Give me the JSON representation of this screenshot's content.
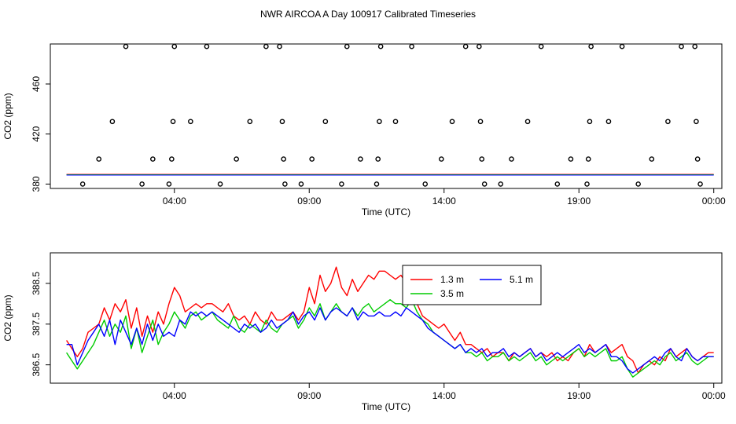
{
  "title": "NWR AIRCOA A  Day 100917  Calibrated Timeseries",
  "chart_data": [
    {
      "type": "scatter",
      "title": "NWR AIRCOA A  Day 100917  Calibrated Timeseries",
      "xlabel": "Time (UTC)",
      "ylabel": "CO2 (ppm)",
      "xlim": [
        -0.6,
        24.3
      ],
      "ylim": [
        376.5,
        492
      ],
      "xticks": [
        4,
        9,
        14,
        19,
        24
      ],
      "xtick_labels": [
        "04:00",
        "09:00",
        "14:00",
        "19:00",
        "00:00"
      ],
      "yticks": [
        380,
        420,
        460
      ],
      "ytick_labels": [
        "380",
        "420",
        "460"
      ],
      "flat_lines": [
        {
          "name": "1.3 m",
          "color": "#ff0000",
          "value": 387.8
        },
        {
          "name": "3.5 m",
          "color": "#00cc00",
          "value": 387.5
        },
        {
          "name": "5.1 m",
          "color": "#0000ff",
          "value": 387.2
        }
      ],
      "points": [
        [
          0.6,
          380
        ],
        [
          1.2,
          400
        ],
        [
          1.7,
          430
        ],
        [
          2.2,
          490
        ],
        [
          2.8,
          380
        ],
        [
          3.2,
          400
        ],
        [
          3.8,
          380
        ],
        [
          3.9,
          400
        ],
        [
          3.95,
          430
        ],
        [
          4.0,
          490
        ],
        [
          4.6,
          430
        ],
        [
          5.2,
          490
        ],
        [
          5.7,
          380
        ],
        [
          6.3,
          400
        ],
        [
          6.8,
          430
        ],
        [
          7.4,
          490
        ],
        [
          7.9,
          490
        ],
        [
          8.0,
          430
        ],
        [
          8.05,
          400
        ],
        [
          8.1,
          380
        ],
        [
          8.7,
          380
        ],
        [
          9.1,
          400
        ],
        [
          9.6,
          430
        ],
        [
          10.2,
          380
        ],
        [
          10.4,
          490
        ],
        [
          10.9,
          400
        ],
        [
          11.5,
          380
        ],
        [
          11.55,
          400
        ],
        [
          11.6,
          430
        ],
        [
          11.65,
          490
        ],
        [
          12.2,
          430
        ],
        [
          12.8,
          490
        ],
        [
          13.3,
          380
        ],
        [
          13.9,
          400
        ],
        [
          14.3,
          430
        ],
        [
          14.8,
          490
        ],
        [
          15.3,
          490
        ],
        [
          15.35,
          430
        ],
        [
          15.4,
          400
        ],
        [
          15.5,
          380
        ],
        [
          16.1,
          380
        ],
        [
          16.5,
          400
        ],
        [
          17.1,
          430
        ],
        [
          17.6,
          490
        ],
        [
          18.2,
          380
        ],
        [
          18.7,
          400
        ],
        [
          19.3,
          380
        ],
        [
          19.35,
          400
        ],
        [
          19.4,
          430
        ],
        [
          19.45,
          490
        ],
        [
          20.1,
          430
        ],
        [
          20.6,
          490
        ],
        [
          21.2,
          380
        ],
        [
          21.7,
          400
        ],
        [
          22.3,
          430
        ],
        [
          22.8,
          490
        ],
        [
          23.3,
          490
        ],
        [
          23.35,
          430
        ],
        [
          23.4,
          400
        ],
        [
          23.5,
          380
        ]
      ]
    },
    {
      "type": "line",
      "xlabel": "Time (UTC)",
      "ylabel": "CO2 (ppm)",
      "xlim": [
        -0.6,
        24.3
      ],
      "ylim": [
        386.05,
        389.25
      ],
      "xticks": [
        4,
        9,
        14,
        19,
        24
      ],
      "xtick_labels": [
        "04:00",
        "09:00",
        "14:00",
        "19:00",
        "00:00"
      ],
      "yticks": [
        386.5,
        387.5,
        388.5
      ],
      "ytick_labels": [
        "386.5",
        "387.5",
        "388.5"
      ],
      "legend_position": "top-right",
      "series": [
        {
          "name": "1.3 m",
          "color": "#ff0000",
          "x": [
            0,
            0.2,
            0.4,
            0.6,
            0.8,
            1.0,
            1.2,
            1.4,
            1.6,
            1.8,
            2.0,
            2.2,
            2.4,
            2.6,
            2.8,
            3.0,
            3.2,
            3.4,
            3.6,
            3.8,
            4.0,
            4.2,
            4.4,
            4.6,
            4.8,
            5.0,
            5.2,
            5.4,
            5.6,
            5.8,
            6.0,
            6.2,
            6.4,
            6.6,
            6.8,
            7.0,
            7.2,
            7.4,
            7.6,
            7.8,
            8.0,
            8.2,
            8.4,
            8.6,
            8.8,
            9.0,
            9.2,
            9.4,
            9.6,
            9.8,
            10.0,
            10.2,
            10.4,
            10.6,
            10.8,
            11.0,
            11.2,
            11.4,
            11.6,
            11.8,
            12.0,
            12.2,
            12.4,
            12.6,
            12.8,
            13.0,
            13.2,
            13.4,
            13.6,
            13.8,
            14.0,
            14.2,
            14.4,
            14.6,
            14.8,
            15.0,
            15.2,
            15.4,
            15.6,
            15.8,
            16.0,
            16.2,
            16.4,
            16.6,
            16.8,
            17.0,
            17.2,
            17.4,
            17.6,
            17.8,
            18.0,
            18.2,
            18.4,
            18.6,
            18.8,
            19.0,
            19.2,
            19.4,
            19.6,
            19.8,
            20.0,
            20.2,
            20.4,
            20.6,
            20.8,
            21.0,
            21.2,
            21.4,
            21.6,
            21.8,
            22.0,
            22.2,
            22.4,
            22.6,
            22.8,
            23.0,
            23.2,
            23.4,
            23.6,
            23.8,
            24.0
          ],
          "values": [
            387.1,
            386.9,
            386.7,
            386.9,
            387.3,
            387.4,
            387.5,
            387.9,
            387.6,
            388.0,
            387.8,
            388.1,
            387.4,
            387.9,
            387.2,
            387.7,
            387.3,
            387.8,
            387.5,
            388.0,
            388.4,
            388.2,
            387.8,
            387.9,
            388.0,
            387.9,
            388.0,
            388.0,
            387.9,
            387.8,
            388.0,
            387.7,
            387.6,
            387.7,
            387.5,
            387.8,
            387.6,
            387.5,
            387.8,
            387.6,
            387.6,
            387.7,
            387.8,
            387.6,
            387.8,
            388.4,
            388.0,
            388.7,
            388.3,
            388.5,
            388.9,
            388.4,
            388.2,
            388.6,
            388.3,
            388.5,
            388.7,
            388.6,
            388.8,
            388.8,
            388.7,
            388.6,
            388.7,
            388.5,
            388.2,
            388.0,
            387.7,
            387.6,
            387.5,
            387.4,
            387.5,
            387.3,
            387.1,
            387.3,
            387.0,
            387.0,
            386.9,
            386.8,
            386.9,
            386.7,
            386.8,
            386.8,
            386.6,
            386.8,
            386.7,
            386.8,
            386.9,
            386.7,
            386.8,
            386.7,
            386.8,
            386.6,
            386.7,
            386.6,
            386.8,
            386.9,
            386.7,
            387.0,
            386.8,
            386.9,
            387.0,
            386.8,
            386.9,
            387.0,
            386.7,
            386.6,
            386.3,
            386.5,
            386.6,
            386.5,
            386.7,
            386.6,
            386.9,
            386.7,
            386.8,
            386.9,
            386.7,
            386.6,
            386.7,
            386.8,
            386.8
          ]
        },
        {
          "name": "3.5 m",
          "color": "#00cc00",
          "x": [
            0,
            0.2,
            0.4,
            0.6,
            0.8,
            1.0,
            1.2,
            1.4,
            1.6,
            1.8,
            2.0,
            2.2,
            2.4,
            2.6,
            2.8,
            3.0,
            3.2,
            3.4,
            3.6,
            3.8,
            4.0,
            4.2,
            4.4,
            4.6,
            4.8,
            5.0,
            5.2,
            5.4,
            5.6,
            5.8,
            6.0,
            6.2,
            6.4,
            6.6,
            6.8,
            7.0,
            7.2,
            7.4,
            7.6,
            7.8,
            8.0,
            8.2,
            8.4,
            8.6,
            8.8,
            9.0,
            9.2,
            9.4,
            9.6,
            9.8,
            10.0,
            10.2,
            10.4,
            10.6,
            10.8,
            11.0,
            11.2,
            11.4,
            11.6,
            11.8,
            12.0,
            12.2,
            12.4,
            12.6,
            12.8,
            13.0,
            13.2,
            13.4,
            13.6,
            13.8,
            14.0,
            14.2,
            14.4,
            14.6,
            14.8,
            15.0,
            15.2,
            15.4,
            15.6,
            15.8,
            16.0,
            16.2,
            16.4,
            16.6,
            16.8,
            17.0,
            17.2,
            17.4,
            17.6,
            17.8,
            18.0,
            18.2,
            18.4,
            18.6,
            18.8,
            19.0,
            19.2,
            19.4,
            19.6,
            19.8,
            20.0,
            20.2,
            20.4,
            20.6,
            20.8,
            21.0,
            21.2,
            21.4,
            21.6,
            21.8,
            22.0,
            22.2,
            22.4,
            22.6,
            22.8,
            23.0,
            23.2,
            23.4,
            23.6,
            23.8,
            24.0
          ],
          "values": [
            386.8,
            386.6,
            386.4,
            386.6,
            386.8,
            387.0,
            387.3,
            387.6,
            387.2,
            387.5,
            387.3,
            387.7,
            386.9,
            387.4,
            386.8,
            387.2,
            387.6,
            387.0,
            387.3,
            387.5,
            387.8,
            387.6,
            387.4,
            387.7,
            387.8,
            387.6,
            387.7,
            387.8,
            387.6,
            387.5,
            387.4,
            387.7,
            387.4,
            387.3,
            387.5,
            387.4,
            387.3,
            387.6,
            387.4,
            387.3,
            387.5,
            387.6,
            387.7,
            387.4,
            387.6,
            387.9,
            387.7,
            388.0,
            387.6,
            387.8,
            388.0,
            387.8,
            387.7,
            387.9,
            387.7,
            387.9,
            388.0,
            387.8,
            387.9,
            388.0,
            388.1,
            388.0,
            388.0,
            387.9,
            388.1,
            387.8,
            387.6,
            387.5,
            387.3,
            387.2,
            387.1,
            387.0,
            386.9,
            387.0,
            386.8,
            386.8,
            386.7,
            386.8,
            386.6,
            386.7,
            386.7,
            386.8,
            386.6,
            386.7,
            386.6,
            386.7,
            386.8,
            386.6,
            386.7,
            386.5,
            386.6,
            386.7,
            386.6,
            386.7,
            386.8,
            386.9,
            386.7,
            386.8,
            386.7,
            386.8,
            386.9,
            386.6,
            386.6,
            386.7,
            386.4,
            386.2,
            386.3,
            386.4,
            386.5,
            386.6,
            386.5,
            386.7,
            386.8,
            386.6,
            386.7,
            386.8,
            386.6,
            386.5,
            386.6,
            386.7,
            386.7
          ]
        },
        {
          "name": "5.1 m",
          "color": "#0000ff",
          "x": [
            0,
            0.2,
            0.4,
            0.6,
            0.8,
            1.0,
            1.2,
            1.4,
            1.6,
            1.8,
            2.0,
            2.2,
            2.4,
            2.6,
            2.8,
            3.0,
            3.2,
            3.4,
            3.6,
            3.8,
            4.0,
            4.2,
            4.4,
            4.6,
            4.8,
            5.0,
            5.2,
            5.4,
            5.6,
            5.8,
            6.0,
            6.2,
            6.4,
            6.6,
            6.8,
            7.0,
            7.2,
            7.4,
            7.6,
            7.8,
            8.0,
            8.2,
            8.4,
            8.6,
            8.8,
            9.0,
            9.2,
            9.4,
            9.6,
            9.8,
            10.0,
            10.2,
            10.4,
            10.6,
            10.8,
            11.0,
            11.2,
            11.4,
            11.6,
            11.8,
            12.0,
            12.2,
            12.4,
            12.6,
            12.8,
            13.0,
            13.2,
            13.4,
            13.6,
            13.8,
            14.0,
            14.2,
            14.4,
            14.6,
            14.8,
            15.0,
            15.2,
            15.4,
            15.6,
            15.8,
            16.0,
            16.2,
            16.4,
            16.6,
            16.8,
            17.0,
            17.2,
            17.4,
            17.6,
            17.8,
            18.0,
            18.2,
            18.4,
            18.6,
            18.8,
            19.0,
            19.2,
            19.4,
            19.6,
            19.8,
            20.0,
            20.2,
            20.4,
            20.6,
            20.8,
            21.0,
            21.2,
            21.4,
            21.6,
            21.8,
            22.0,
            22.2,
            22.4,
            22.6,
            22.8,
            23.0,
            23.2,
            23.4,
            23.6,
            23.8,
            24.0
          ],
          "values": [
            387.0,
            387.0,
            386.5,
            386.8,
            387.1,
            387.3,
            387.5,
            387.2,
            387.6,
            387.0,
            387.6,
            387.3,
            387.0,
            387.4,
            387.0,
            387.5,
            387.1,
            387.5,
            387.2,
            387.3,
            387.2,
            387.6,
            387.5,
            387.8,
            387.7,
            387.8,
            387.7,
            387.8,
            387.7,
            387.6,
            387.5,
            387.4,
            387.3,
            387.5,
            387.4,
            387.5,
            387.3,
            387.4,
            387.6,
            387.4,
            387.5,
            387.6,
            387.8,
            387.5,
            387.7,
            387.8,
            387.6,
            387.9,
            387.6,
            387.8,
            387.9,
            387.8,
            387.7,
            387.9,
            387.6,
            387.8,
            387.7,
            387.7,
            387.8,
            387.7,
            387.7,
            387.8,
            387.7,
            387.9,
            387.8,
            387.7,
            387.6,
            387.4,
            387.3,
            387.2,
            387.1,
            387.0,
            386.9,
            387.0,
            386.8,
            386.9,
            386.8,
            386.9,
            386.7,
            386.8,
            386.8,
            386.9,
            386.7,
            386.8,
            386.7,
            386.8,
            386.9,
            386.7,
            386.8,
            386.6,
            386.7,
            386.8,
            386.7,
            386.8,
            386.9,
            387.0,
            386.8,
            386.9,
            386.8,
            386.9,
            387.0,
            386.7,
            386.7,
            386.6,
            386.4,
            386.3,
            386.4,
            386.5,
            386.6,
            386.7,
            386.6,
            386.8,
            386.9,
            386.7,
            386.6,
            386.9,
            386.7,
            386.6,
            386.7,
            386.7,
            386.7
          ]
        }
      ]
    }
  ]
}
